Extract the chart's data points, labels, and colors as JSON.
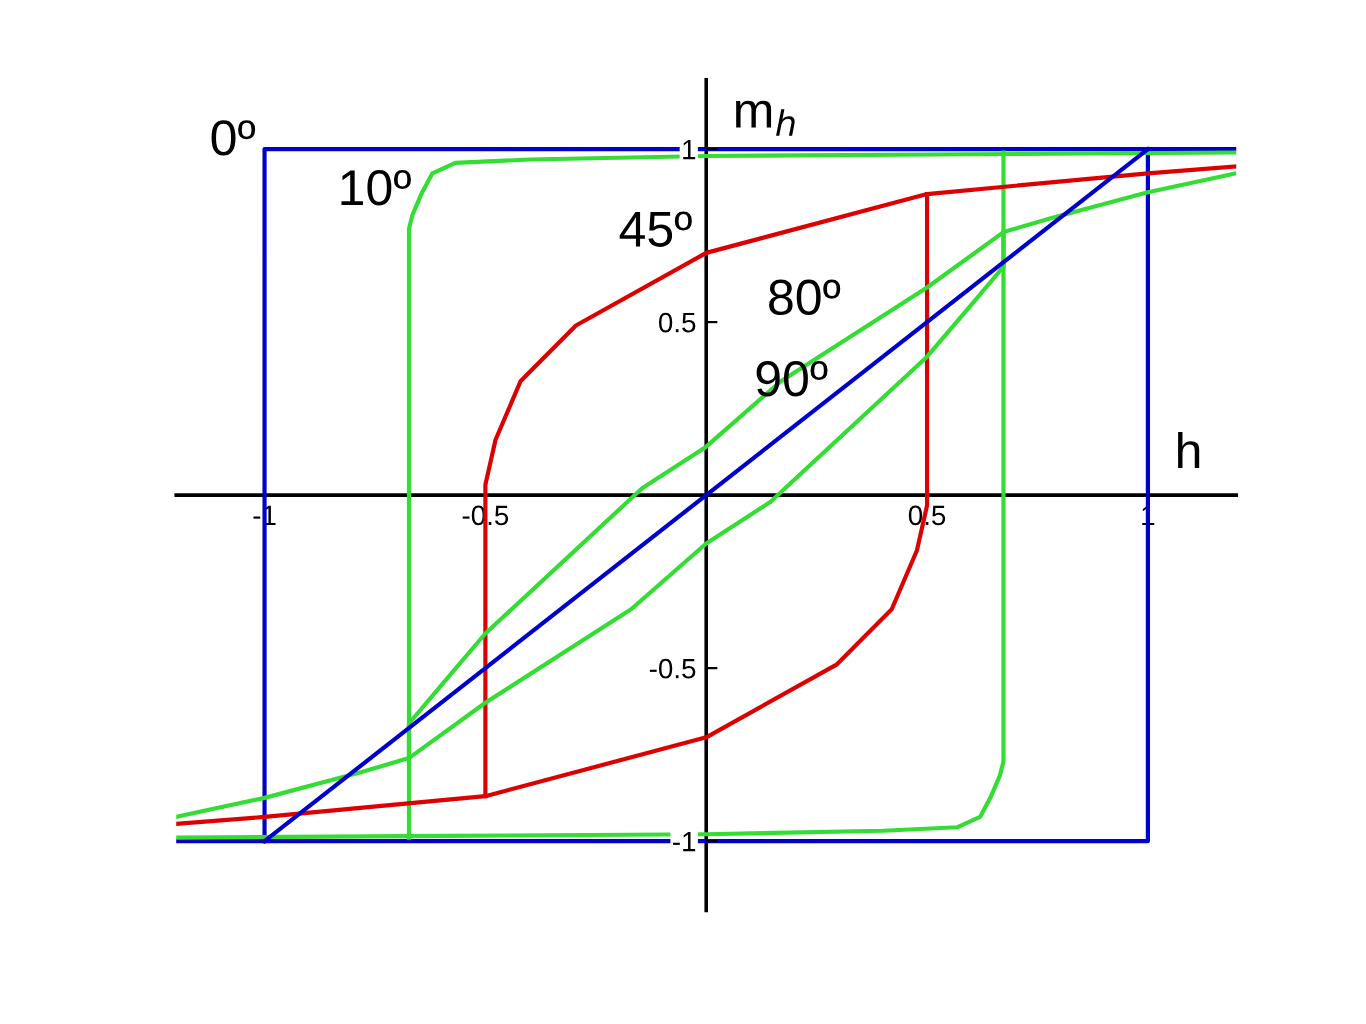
{
  "chart_data": {
    "type": "line",
    "xlabel": "h",
    "ylabel": "m$_{h}$",
    "xlim": [
      -1.2,
      1.2
    ],
    "ylim": [
      -1.2,
      1.2
    ],
    "xticks": [
      -1,
      -0.5,
      0.5,
      1
    ],
    "yticks": [
      -1,
      -0.5,
      0.5,
      1
    ],
    "grid": false,
    "legend": false,
    "marker": "none",
    "line_style": "solid",
    "series": [
      {
        "name": "0º",
        "color": "#0000cc",
        "x": [
          1.2,
          -1,
          -1
        ],
        "values": [
          1,
          1,
          -1
        ]
      },
      {
        "color": "#0000cc",
        "x": [
          -1.2,
          1,
          1
        ],
        "values": [
          -1,
          -1,
          1
        ]
      },
      {
        "name": "10º",
        "color": "#33dd33",
        "x": [
          1.2,
          0.6,
          0,
          -0.4,
          -0.568,
          -0.62,
          -0.645,
          -0.665,
          -0.673,
          -0.673
        ],
        "values": [
          0.99,
          0.985,
          0.98,
          0.97,
          0.96,
          0.93,
          0.87,
          0.81,
          0.77,
          -0.99
        ]
      },
      {
        "color": "#33dd33",
        "x": [
          -1.2,
          -0.6,
          0,
          0.4,
          0.568,
          0.62,
          0.645,
          0.665,
          0.673,
          0.673
        ],
        "values": [
          -0.99,
          -0.985,
          -0.98,
          -0.97,
          -0.96,
          -0.93,
          -0.87,
          -0.81,
          -0.77,
          0.99
        ]
      },
      {
        "name": "45º",
        "color": "#dd0000",
        "x": [
          1.2,
          1,
          0.5,
          0,
          -0.295,
          -0.42,
          -0.477,
          -0.5,
          -0.5
        ],
        "values": [
          0.95,
          0.93,
          0.87,
          0.7,
          0.49,
          0.33,
          0.16,
          0.03,
          -0.87
        ]
      },
      {
        "color": "#dd0000",
        "x": [
          -1.2,
          -1,
          -0.5,
          0,
          0.295,
          0.42,
          0.477,
          0.5,
          0.5
        ],
        "values": [
          -0.95,
          -0.93,
          -0.87,
          -0.7,
          -0.49,
          -0.33,
          -0.16,
          -0.03,
          0.87
        ]
      },
      {
        "name": "80º",
        "color": "#33dd33",
        "x": [
          1.2,
          1,
          0.78,
          0.673,
          0.5,
          0.17,
          0,
          -0.145,
          -0.5,
          -0.6,
          -0.673,
          -0.673
        ],
        "values": [
          0.93,
          0.875,
          0.8,
          0.76,
          0.6,
          0.33,
          0.14,
          0.02,
          -0.4,
          -0.55,
          -0.66,
          -0.76
        ]
      },
      {
        "color": "#33dd33",
        "x": [
          -1.2,
          -1,
          -0.78,
          -0.673,
          -0.5,
          -0.17,
          0,
          0.145,
          0.5,
          0.6,
          0.673,
          0.673
        ],
        "values": [
          -0.93,
          -0.875,
          -0.8,
          -0.76,
          -0.6,
          -0.33,
          -0.14,
          -0.02,
          0.4,
          0.55,
          0.66,
          0.76
        ]
      },
      {
        "name": "90º",
        "color": "#0000cc",
        "x": [
          -1,
          1
        ],
        "values": [
          -1,
          1
        ]
      }
    ]
  }
}
